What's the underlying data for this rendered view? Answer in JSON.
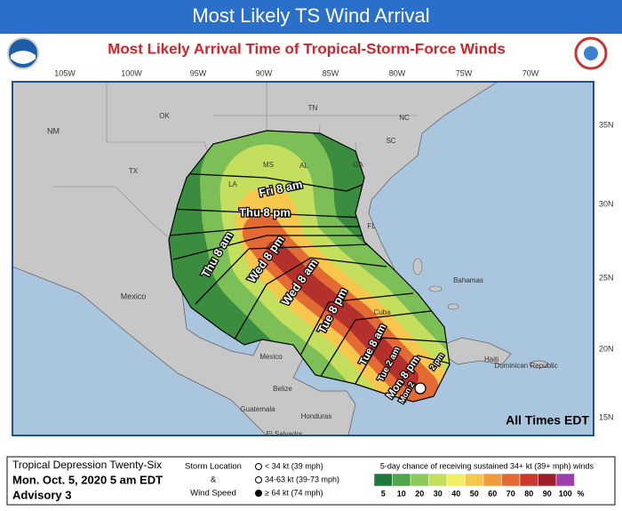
{
  "header": {
    "banner": "Most Likely TS Wind Arrival",
    "title": "Most Likely Arrival Time of Tropical-Storm-Force Winds"
  },
  "map": {
    "longitudes": [
      "105W",
      "100W",
      "95W",
      "90W",
      "85W",
      "80W",
      "75W",
      "70W"
    ],
    "latitudes": [
      "35N",
      "30N",
      "25N",
      "20N",
      "15N"
    ],
    "places": [
      "NM",
      "OK",
      "TN",
      "NC",
      "SC",
      "GA",
      "AL",
      "MS",
      "LA",
      "TX",
      "FL",
      "Mexico",
      "Bahamas",
      "Cuba",
      "Haiti",
      "Dominican Republic",
      "Mexico",
      "Belize",
      "Guatemala",
      "Honduras",
      "El Salvador"
    ],
    "arrival_times": [
      "Fri 8 am",
      "Thu 8 pm",
      "Thu 8 am",
      "Wed 8 pm",
      "Wed 8 am",
      "Tue 8 pm",
      "Tue 8 am",
      "Tue 2 am",
      "Mon 8 pm",
      "2 pm",
      "Mon 2"
    ],
    "note": "All Times EDT"
  },
  "legend": {
    "storm": "Tropical Depression Twenty-Six",
    "issued": "Mon. Oct. 5, 2020  5 am EDT",
    "advisory": "Advisory 3",
    "symbol_title": [
      "Storm Location",
      "&",
      "Wind Speed"
    ],
    "symbols": [
      "< 34 kt (39 mph)",
      "34-63 kt (39-73 mph)",
      "≥ 64 kt (74 mph)"
    ],
    "scale_title": "5-day chance of receiving sustained 34+ kt (39+ mph) winds",
    "scale": [
      {
        "value": 5,
        "color": "#1f7a3a"
      },
      {
        "value": 10,
        "color": "#4ea64a"
      },
      {
        "value": 20,
        "color": "#8cc85a"
      },
      {
        "value": 30,
        "color": "#c4de5e"
      },
      {
        "value": 40,
        "color": "#f2ee62"
      },
      {
        "value": 50,
        "color": "#f7c64c"
      },
      {
        "value": 60,
        "color": "#f29a3e"
      },
      {
        "value": 70,
        "color": "#e46a34"
      },
      {
        "value": 80,
        "color": "#cc3a2e"
      },
      {
        "value": 90,
        "color": "#9e1f2a"
      },
      {
        "value": 100,
        "color": "#9c3fa8"
      }
    ],
    "unit": "%"
  }
}
